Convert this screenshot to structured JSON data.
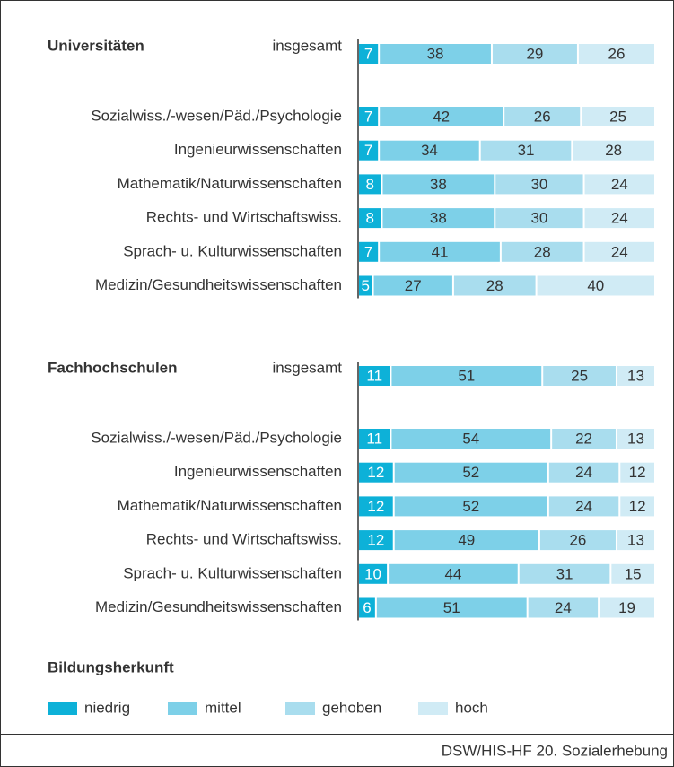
{
  "chart_data": {
    "type": "bar",
    "orientation": "horizontal",
    "stacked": true,
    "xlim": [
      0,
      100
    ],
    "groups": [
      {
        "title": "Universitäten",
        "categories": [
          "insgesamt",
          "Sozialwiss./-wesen/Päd./Psychologie",
          "Ingenieurwissenschaften",
          "Mathematik/Naturwissenschaften",
          "Rechts- und Wirtschaftswiss.",
          "Sprach- u. Kulturwissenschaften",
          "Medizin/Gesundheitswissenschaften"
        ]
      },
      {
        "title": "Fachhochschulen",
        "categories": [
          "insgesamt",
          "Sozialwiss./-wesen/Päd./Psychologie",
          "Ingenieurwissenschaften",
          "Mathematik/Naturwissenschaften",
          "Rechts- und Wirtschaftswiss.",
          "Sprach- u. Kulturwissenschaften",
          "Medizin/Gesundheitswissenschaften"
        ]
      }
    ],
    "series": [
      {
        "name": "niedrig",
        "color": "#0db1d8",
        "values": [
          [
            7,
            7,
            7,
            8,
            8,
            7,
            5
          ],
          [
            11,
            11,
            12,
            12,
            12,
            10,
            6
          ]
        ]
      },
      {
        "name": "mittel",
        "color": "#7dd0e8",
        "values": [
          [
            38,
            42,
            34,
            38,
            38,
            41,
            27
          ],
          [
            51,
            54,
            52,
            52,
            49,
            44,
            51
          ]
        ]
      },
      {
        "name": "gehoben",
        "color": "#a9ddee",
        "values": [
          [
            29,
            26,
            31,
            30,
            30,
            28,
            28
          ],
          [
            25,
            22,
            24,
            24,
            26,
            31,
            24
          ]
        ]
      },
      {
        "name": "hoch",
        "color": "#d0ebf5",
        "values": [
          [
            26,
            25,
            28,
            24,
            24,
            24,
            40
          ],
          [
            13,
            13,
            12,
            12,
            13,
            15,
            19
          ]
        ]
      }
    ],
    "legend_title": "Bildungsherkunft",
    "source": "DSW/HIS-HF 20. Sozialerhebung"
  }
}
